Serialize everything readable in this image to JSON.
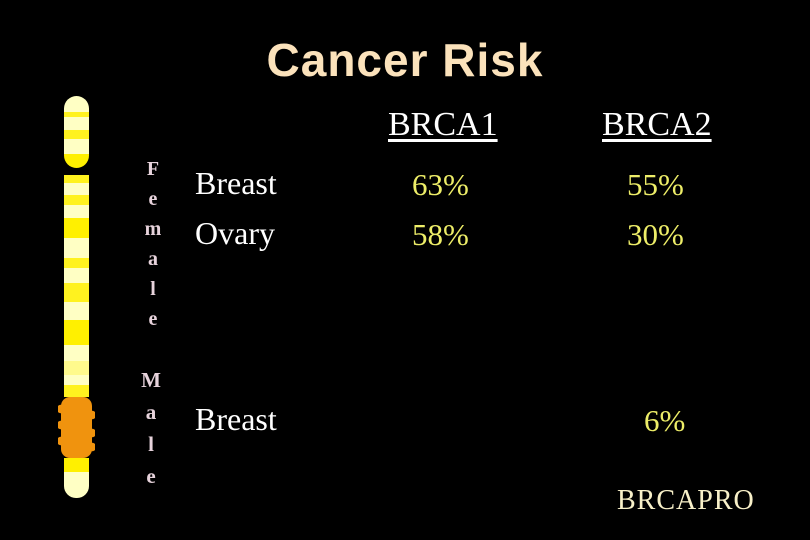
{
  "slide": {
    "title": "Cancer Risk",
    "footer": "BRCAPRO"
  },
  "table": {
    "columns": [
      "BRCA1",
      "BRCA2"
    ],
    "groups": [
      {
        "label": "Female",
        "rows": [
          {
            "site": "Breast",
            "brca1": "63%",
            "brca2": "55%"
          },
          {
            "site": "Ovary",
            "brca1": "58%",
            "brca2": "30%"
          }
        ]
      },
      {
        "label": "Male",
        "rows": [
          {
            "site": "Breast",
            "brca1": "",
            "brca2": "6%"
          }
        ]
      }
    ]
  },
  "graphic": {
    "name": "chromosome-illustration"
  },
  "colors": {
    "background": "#000000",
    "title": "#FBE2BB",
    "table_text": "#FFFFFF",
    "value_yellow": "#EDED68",
    "group_label_pink": "#E7D3DC",
    "footer_cream": "#F8F0C8",
    "chromosome_cream": "#FFFFC4",
    "chromosome_yellow": "#FFF000",
    "chromosome_orange": "#F0930E"
  }
}
